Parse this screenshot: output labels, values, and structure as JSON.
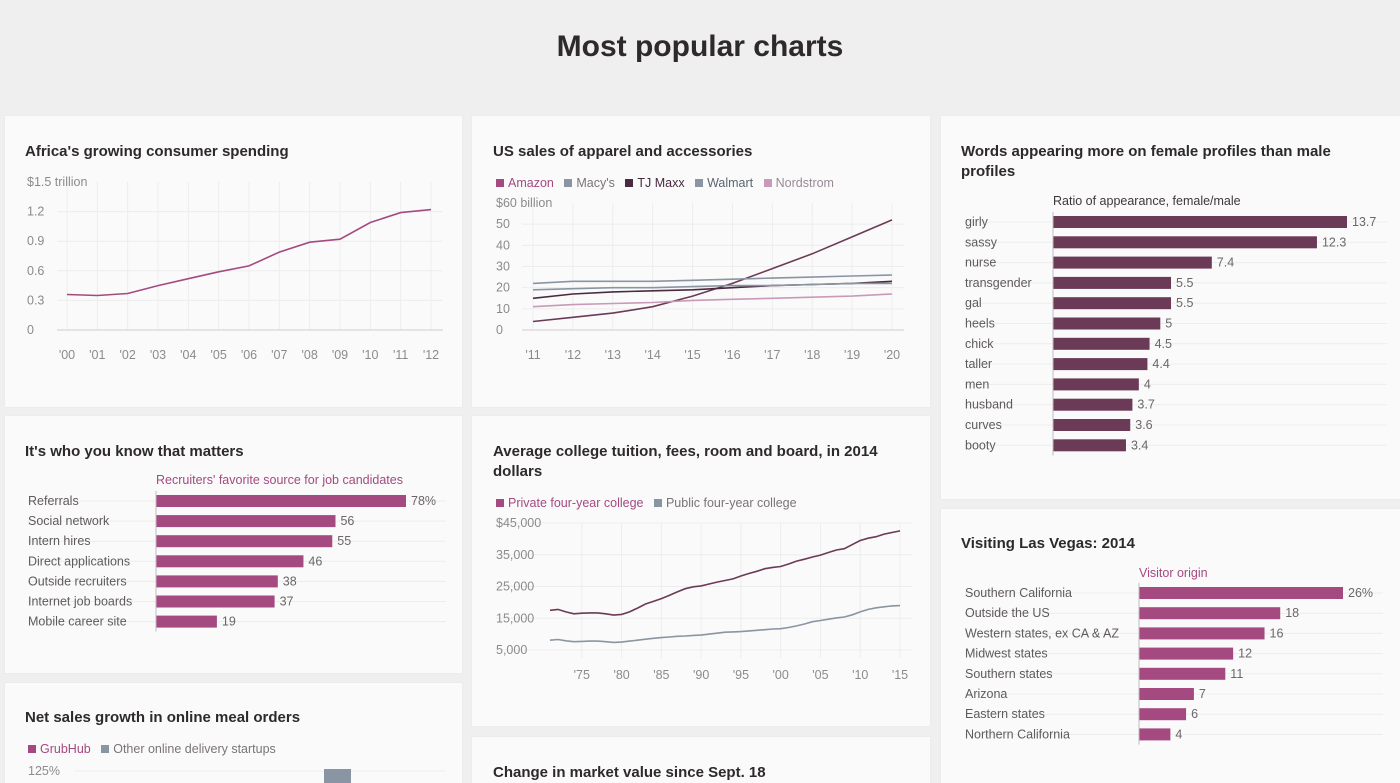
{
  "page": {
    "title": "Most popular charts"
  },
  "colors": {
    "magenta": "#a44a80",
    "grubhub": "#a44a80",
    "plum": "#6b3a56",
    "dark": "#4a2a40",
    "gray": "#8a95a3",
    "lightgray": "#b9c1cb",
    "pink": "#c99ab8",
    "axis": "#cfcfcf",
    "grid": "#ededed",
    "tick": "#8b8b8b"
  },
  "chart_data": [
    {
      "id": "africa",
      "type": "line",
      "title": "Africa's growing consumer spending",
      "unit_label": "$1.5 trillion",
      "x": [
        "'00",
        "'01",
        "'02",
        "'03",
        "'04",
        "'05",
        "'06",
        "'07",
        "'08",
        "'09",
        "'10",
        "'11",
        "'12"
      ],
      "series": [
        {
          "values": [
            0.36,
            0.35,
            0.37,
            0.45,
            0.52,
            0.59,
            0.65,
            0.79,
            0.89,
            0.92,
            1.09,
            1.19,
            1.22
          ]
        }
      ],
      "yticks": [
        "1.2",
        "0.9",
        "0.6",
        "0.3",
        "0"
      ],
      "ylim": [
        0,
        1.5
      ]
    },
    {
      "id": "apparel",
      "type": "line",
      "title": "US sales of apparel and accessories",
      "unit_label": "$60 billion",
      "legend": [
        "Amazon",
        "Macy's",
        "TJ Maxx",
        "Walmart",
        "Nordstrom"
      ],
      "x": [
        "'11",
        "'12",
        "'13",
        "'14",
        "'15",
        "'16",
        "'17",
        "'18",
        "'19",
        "'20"
      ],
      "series": [
        {
          "name": "Amazon",
          "values": [
            4,
            6,
            8,
            11,
            16,
            22,
            29,
            36,
            44,
            52
          ]
        },
        {
          "name": "Macy's",
          "values": [
            22,
            23,
            23,
            23,
            23.5,
            24,
            24.5,
            25,
            25.5,
            26
          ]
        },
        {
          "name": "TJ Maxx",
          "values": [
            15,
            17,
            18,
            18.5,
            19,
            20,
            21,
            21.5,
            22,
            23
          ]
        },
        {
          "name": "Walmart",
          "values": [
            19,
            19.5,
            20,
            20,
            20.5,
            21,
            21,
            21.5,
            22,
            22
          ]
        },
        {
          "name": "Nordstrom",
          "values": [
            11,
            12,
            12.5,
            13,
            14,
            14.5,
            15,
            15.5,
            16,
            17
          ]
        }
      ],
      "yticks": [
        "50",
        "40",
        "30",
        "20",
        "10",
        "0"
      ],
      "ylim": [
        0,
        60
      ]
    },
    {
      "id": "words",
      "type": "bar",
      "title": "Words appearing more on female profiles than male profiles",
      "subtitle": "Ratio of appearance, female/male",
      "categories": [
        "girly",
        "sassy",
        "nurse",
        "transgender",
        "gal",
        "heels",
        "chick",
        "taller",
        "men",
        "husband",
        "curves",
        "booty"
      ],
      "values": [
        13.7,
        12.3,
        7.4,
        5.5,
        5.5,
        5,
        4.5,
        4.4,
        4,
        3.7,
        3.6,
        3.4
      ],
      "labels": [
        "13.7",
        "12.3",
        "7.4",
        "5.5",
        "5.5",
        "5",
        "4.5",
        "4.4",
        "4",
        "3.7",
        "3.6",
        "3.4"
      ]
    },
    {
      "id": "recruiters",
      "type": "bar",
      "title": "It's who you know that matters",
      "subtitle": "Recruiters' favorite source for job candidates",
      "categories": [
        "Referrals",
        "Social network",
        "Intern hires",
        "Direct applications",
        "Outside recruiters",
        "Internet job boards",
        "Mobile career site"
      ],
      "values": [
        78,
        56,
        55,
        46,
        38,
        37,
        19
      ],
      "labels": [
        "78%",
        "56",
        "55",
        "46",
        "38",
        "37",
        "19"
      ]
    },
    {
      "id": "tuition",
      "type": "line",
      "title": "Average college tuition, fees, room and board, in 2014 dollars",
      "legend": [
        "Private four-year college",
        "Public four-year college"
      ],
      "x": [
        "'75",
        "'80",
        "'85",
        "'90",
        "'95",
        "'00",
        "'05",
        "'10",
        "'15"
      ],
      "series": [
        {
          "name": "Private four-year college",
          "x": [
            1971,
            1972,
            1973,
            1974,
            1975,
            1976,
            1977,
            1978,
            1979,
            1980,
            1981,
            1982,
            1983,
            1984,
            1985,
            1986,
            1987,
            1988,
            1989,
            1990,
            1991,
            1992,
            1993,
            1994,
            1995,
            1996,
            1997,
            1998,
            1999,
            2000,
            2001,
            2002,
            2003,
            2004,
            2005,
            2006,
            2007,
            2008,
            2009,
            2010,
            2011,
            2012,
            2013,
            2014,
            2015
          ],
          "values": [
            17500,
            17800,
            17000,
            16400,
            16600,
            16700,
            16700,
            16400,
            16000,
            16200,
            17000,
            18200,
            19500,
            20300,
            21200,
            22200,
            23300,
            24300,
            24900,
            25200,
            25800,
            26400,
            26900,
            27400,
            28300,
            29100,
            29800,
            30600,
            31000,
            31300,
            32100,
            33000,
            33600,
            34300,
            34900,
            35700,
            36500,
            36900,
            38200,
            39500,
            40200,
            40700,
            41500,
            42000,
            42500
          ]
        },
        {
          "name": "Public four-year college",
          "x": [
            1971,
            1972,
            1973,
            1974,
            1975,
            1976,
            1977,
            1978,
            1979,
            1980,
            1981,
            1982,
            1983,
            1984,
            1985,
            1986,
            1987,
            1988,
            1989,
            1990,
            1991,
            1992,
            1993,
            1994,
            1995,
            1996,
            1997,
            1998,
            1999,
            2000,
            2001,
            2002,
            2003,
            2004,
            2005,
            2006,
            2007,
            2008,
            2009,
            2010,
            2011,
            2012,
            2013,
            2014,
            2015
          ],
          "values": [
            8100,
            8300,
            7900,
            7600,
            7700,
            7800,
            7800,
            7600,
            7400,
            7500,
            7800,
            8100,
            8400,
            8700,
            8900,
            9100,
            9300,
            9400,
            9600,
            9700,
            10000,
            10300,
            10600,
            10700,
            10800,
            11000,
            11200,
            11400,
            11600,
            11700,
            12100,
            12600,
            13200,
            13900,
            14300,
            14700,
            15100,
            15400,
            16100,
            17000,
            17800,
            18300,
            18600,
            18900,
            19000
          ]
        }
      ],
      "yticks": [
        "$45,000",
        "35,000",
        "25,000",
        "15,000",
        "5,000"
      ],
      "ylim": [
        0,
        45000
      ]
    },
    {
      "id": "vegas",
      "type": "bar",
      "title": "Visiting Las Vegas: 2014",
      "subtitle": "Visitor origin",
      "categories": [
        "Southern California",
        "Outside the US",
        "Western states, ex CA & AZ",
        "Midwest states",
        "Southern states",
        "Arizona",
        "Eastern states",
        "Northern California"
      ],
      "values": [
        26,
        18,
        16,
        12,
        11,
        7,
        6,
        4
      ],
      "labels": [
        "26%",
        "18",
        "16",
        "12",
        "11",
        "7",
        "6",
        "4"
      ]
    },
    {
      "id": "meal",
      "type": "bar",
      "title": "Net sales growth in online meal orders",
      "legend": [
        "GrubHub",
        "Other online delivery startups"
      ],
      "unit_label": "125%"
    }
  ],
  "extra_cards": {
    "market_title": "Change in market value since Sept. 18"
  }
}
